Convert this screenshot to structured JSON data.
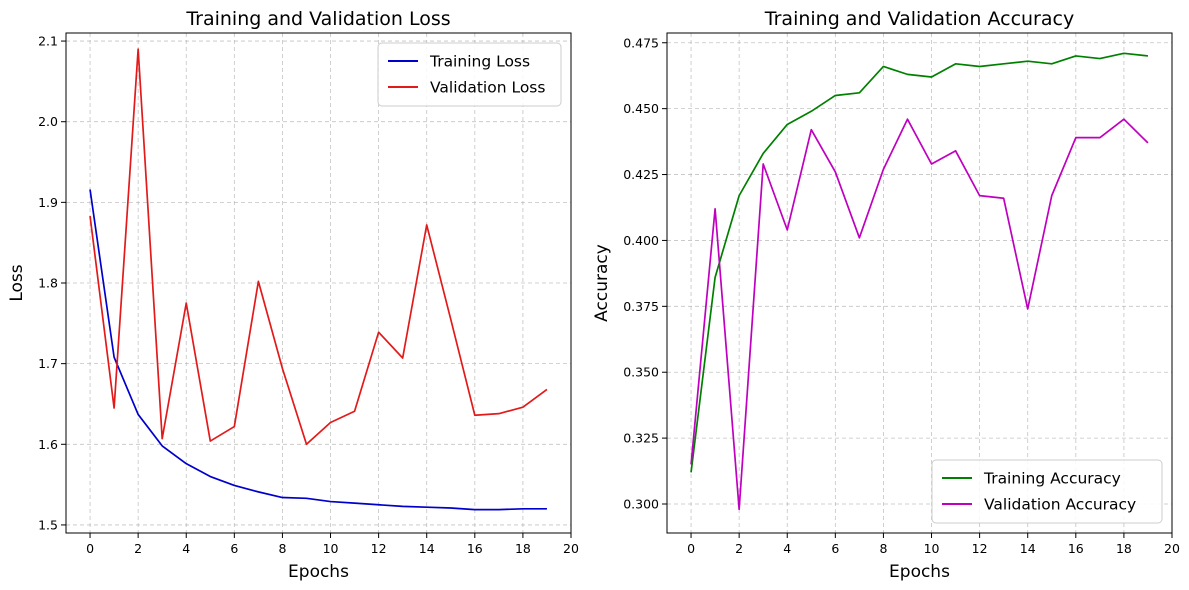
{
  "chart_data": [
    {
      "type": "line",
      "title": "Training and Validation Loss",
      "xlabel": "Epochs",
      "ylabel": "Loss",
      "x": [
        0,
        1,
        2,
        3,
        4,
        5,
        6,
        7,
        8,
        9,
        10,
        11,
        12,
        13,
        14,
        15,
        16,
        17,
        18,
        19
      ],
      "xlim": [
        -1,
        20
      ],
      "ylim": [
        1.49,
        2.11
      ],
      "xticks": [
        0,
        2,
        4,
        6,
        8,
        10,
        12,
        14,
        16,
        18,
        20
      ],
      "yticks": [
        1.5,
        1.6,
        1.7,
        1.8,
        1.9,
        2.0,
        2.1
      ],
      "ytick_decimals": 1,
      "grid": true,
      "legend_position": "top-right",
      "series": [
        {
          "name": "Training Loss",
          "color": "#0000cc",
          "values": [
            1.916,
            1.708,
            1.637,
            1.598,
            1.576,
            1.56,
            1.549,
            1.541,
            1.534,
            1.533,
            1.529,
            1.527,
            1.525,
            1.523,
            1.522,
            1.521,
            1.519,
            1.519,
            1.52,
            1.52
          ]
        },
        {
          "name": "Validation Loss",
          "color": "#e31a1a",
          "values": [
            1.883,
            1.645,
            2.09,
            1.607,
            1.775,
            1.604,
            1.622,
            1.802,
            1.694,
            1.6,
            1.627,
            1.641,
            1.739,
            1.707,
            1.872,
            1.755,
            1.636,
            1.638,
            1.646,
            1.668
          ]
        }
      ]
    },
    {
      "type": "line",
      "title": "Training and Validation Accuracy",
      "xlabel": "Epochs",
      "ylabel": "Accuracy",
      "x": [
        0,
        1,
        2,
        3,
        4,
        5,
        6,
        7,
        8,
        9,
        10,
        11,
        12,
        13,
        14,
        15,
        16,
        17,
        18,
        19
      ],
      "xlim": [
        -1,
        20
      ],
      "ylim": [
        0.289,
        0.4787
      ],
      "xticks": [
        0,
        2,
        4,
        6,
        8,
        10,
        12,
        14,
        16,
        18,
        20
      ],
      "yticks": [
        0.3,
        0.325,
        0.35,
        0.375,
        0.4,
        0.425,
        0.45,
        0.475
      ],
      "ytick_decimals": 3,
      "grid": true,
      "legend_position": "bottom-right",
      "series": [
        {
          "name": "Training Accuracy",
          "color": "#008000",
          "values": [
            0.312,
            0.386,
            0.417,
            0.433,
            0.444,
            0.449,
            0.455,
            0.456,
            0.466,
            0.463,
            0.462,
            0.467,
            0.466,
            0.467,
            0.468,
            0.467,
            0.47,
            0.469,
            0.471,
            0.47
          ]
        },
        {
          "name": "Validation Accuracy",
          "color": "#bf00bf",
          "values": [
            0.315,
            0.412,
            0.298,
            0.429,
            0.404,
            0.442,
            0.426,
            0.401,
            0.427,
            0.446,
            0.429,
            0.434,
            0.417,
            0.416,
            0.374,
            0.417,
            0.439,
            0.439,
            0.446,
            0.437
          ]
        }
      ]
    }
  ]
}
